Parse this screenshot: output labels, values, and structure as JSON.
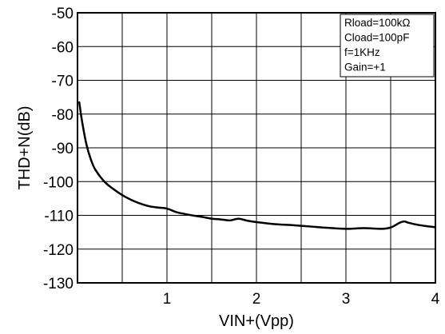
{
  "chart_data": {
    "type": "line",
    "xlabel": "VIN+(Vpp)",
    "ylabel": "THD+N(dB)",
    "xlim": [
      0,
      4
    ],
    "ylim": [
      -130,
      -50
    ],
    "x_ticks": [
      1,
      2,
      3,
      4
    ],
    "x_tick_labels": [
      "1",
      "2",
      "3",
      "4"
    ],
    "y_ticks": [
      -50,
      -60,
      -70,
      -80,
      -90,
      -100,
      -110,
      -120,
      -130
    ],
    "y_tick_labels": [
      "-50",
      "-60",
      "-70",
      "-80",
      "-90",
      "-100",
      "-110",
      "-120",
      "-130"
    ],
    "grid": true,
    "legend_position": "top-right",
    "annotations": [
      "Rload=100kΩ",
      "Cload=100pF",
      "f=1KHz",
      "Gain=+1"
    ],
    "series": [
      {
        "x": [
          0.02,
          0.05,
          0.1,
          0.15,
          0.2,
          0.3,
          0.4,
          0.5,
          0.6,
          0.7,
          0.8,
          0.9,
          1.0,
          1.1,
          1.2,
          1.3,
          1.4,
          1.5,
          1.6,
          1.7,
          1.8,
          1.9,
          2.0,
          2.2,
          2.4,
          2.6,
          2.8,
          3.0,
          3.2,
          3.4,
          3.5,
          3.6,
          3.65,
          3.7,
          3.8,
          3.9,
          4.0
        ],
        "y": [
          -76.5,
          -82,
          -89,
          -93.5,
          -96.5,
          -100,
          -102.2,
          -104,
          -105.4,
          -106.5,
          -107.3,
          -107.7,
          -108,
          -109,
          -109.6,
          -110.1,
          -110.5,
          -111,
          -111.2,
          -111.5,
          -111,
          -111.6,
          -112,
          -112.6,
          -112.9,
          -113.3,
          -113.7,
          -114,
          -113.8,
          -114,
          -113.6,
          -112.2,
          -111.8,
          -112.2,
          -112.8,
          -113.2,
          -113.5
        ]
      }
    ]
  }
}
